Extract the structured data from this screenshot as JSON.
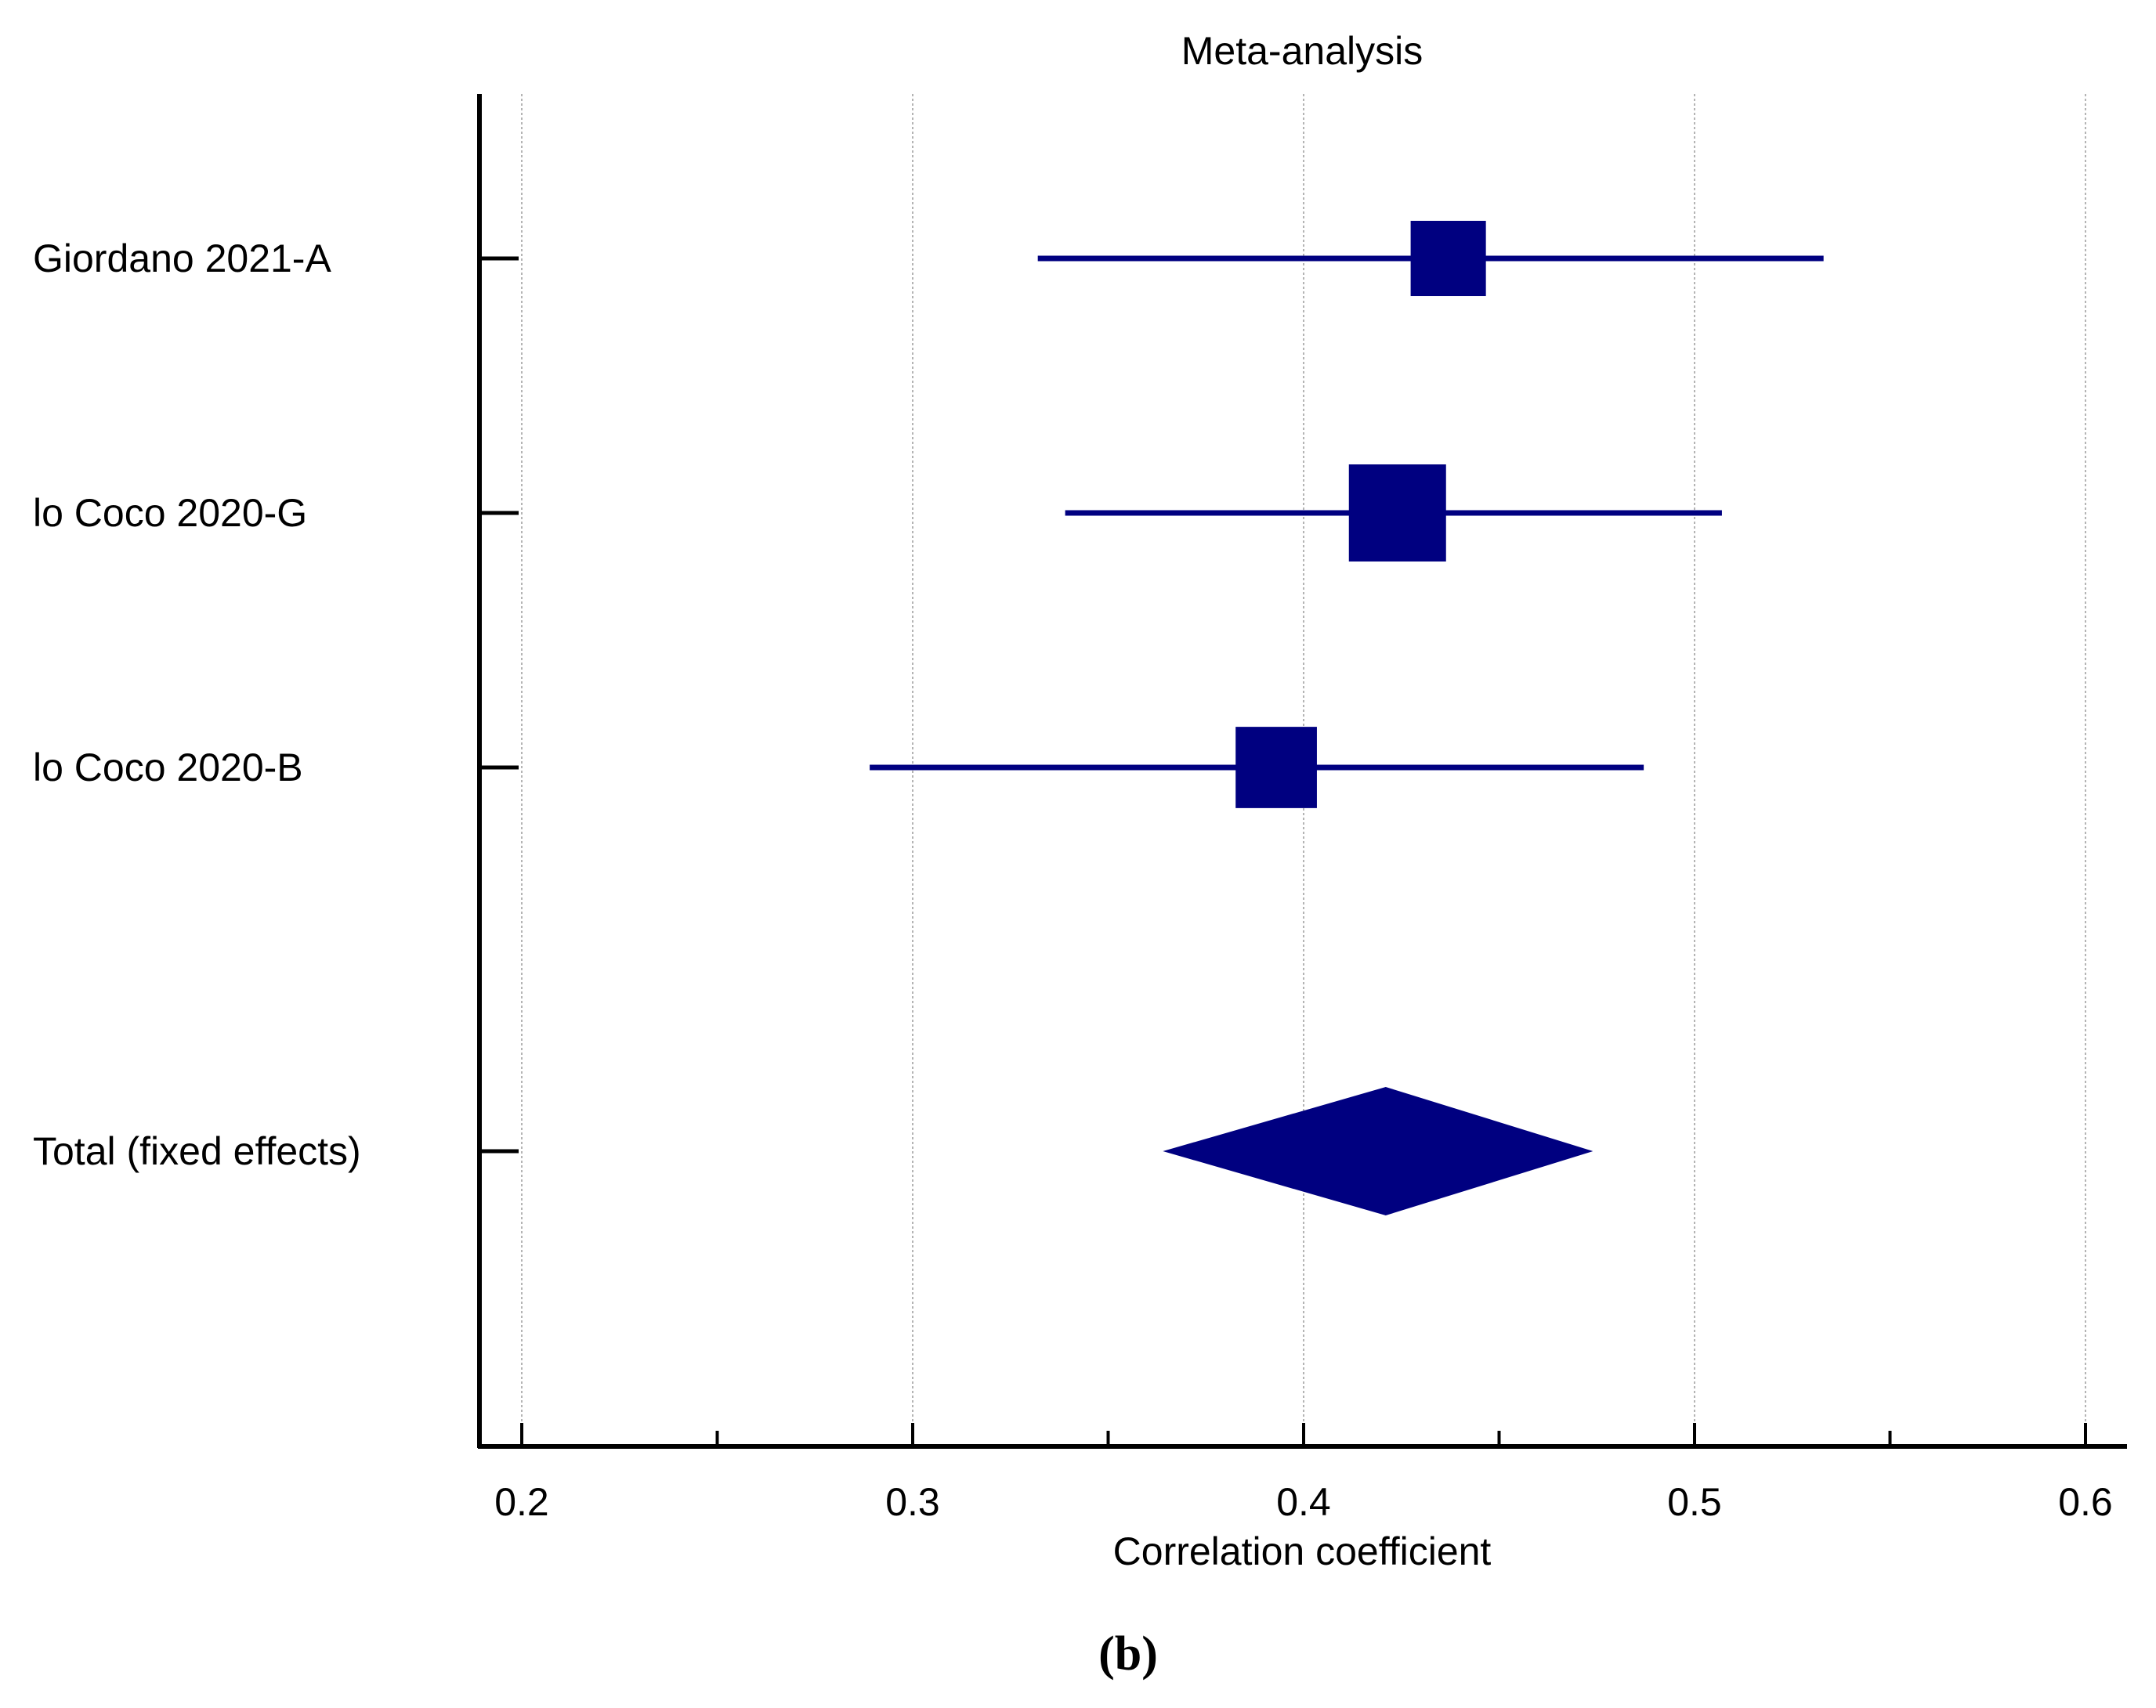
{
  "chart_data": {
    "type": "forest",
    "title": "Meta-analysis",
    "xlabel": "Correlation coefficient",
    "xlim": [
      0.2,
      0.6
    ],
    "xticks": [
      "0.2",
      "0.3",
      "0.4",
      "0.5",
      "0.6"
    ],
    "minor_ticks": [
      0.25,
      0.35,
      0.45,
      0.55
    ],
    "grid": true,
    "studies": [
      {
        "label": "Giordano 2021-A",
        "estimate": 0.437,
        "ci_low": 0.332,
        "ci_high": 0.533,
        "weight": 0.6
      },
      {
        "label": "lo Coco 2020-G",
        "estimate": 0.424,
        "ci_low": 0.339,
        "ci_high": 0.507,
        "weight": 1.0
      },
      {
        "label": "lo Coco 2020-B",
        "estimate": 0.393,
        "ci_low": 0.289,
        "ci_high": 0.487,
        "weight": 0.7
      }
    ],
    "total": {
      "label": "Total (fixed effects)",
      "estimate": 0.421,
      "ci_low": 0.364,
      "ci_high": 0.474
    },
    "colors": {
      "marker": "#000080",
      "axis": "#000000",
      "grid": "#b4b4b4"
    }
  },
  "panel_label": "(b)"
}
